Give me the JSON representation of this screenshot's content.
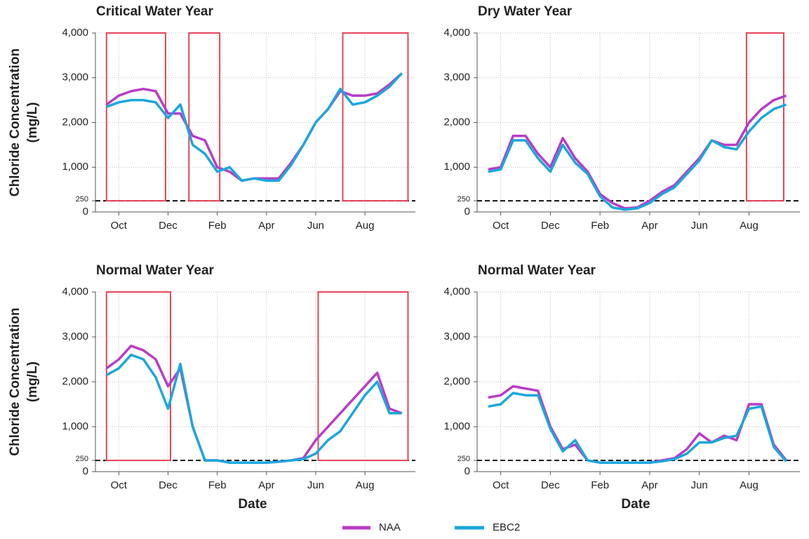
{
  "chart_data": [
    {
      "type": "line",
      "title": "Critical Water Year",
      "y_label": [
        "Chloride Concentration",
        "(mg/L)"
      ],
      "categories": [
        null,
        "Oct",
        null,
        null,
        null,
        "Dec",
        null,
        null,
        null,
        "Feb",
        null,
        null,
        null,
        "Apr",
        null,
        null,
        null,
        "Jun",
        null,
        null,
        null,
        "Aug",
        null,
        null,
        null
      ],
      "series": [
        {
          "name": "NAA",
          "color": "#b93cc6",
          "values": [
            2400,
            2600,
            2700,
            2750,
            2700,
            2200,
            2200,
            1700,
            1600,
            1000,
            900,
            700,
            750,
            750,
            750,
            1100,
            1500,
            2000,
            2300,
            2700,
            2600,
            2600,
            2650,
            2850,
            3100
          ]
        },
        {
          "name": "EBC2",
          "color": "#1aa7dd",
          "values": [
            2350,
            2450,
            2500,
            2500,
            2450,
            2100,
            2400,
            1500,
            1300,
            900,
            1000,
            700,
            750,
            700,
            700,
            1050,
            1500,
            2000,
            2300,
            2750,
            2400,
            2450,
            2600,
            2800,
            3100
          ]
        }
      ],
      "ylim": [
        0,
        4000
      ],
      "yticks": [
        0,
        250,
        {
          "value": 1000,
          "label": "1,000"
        },
        {
          "value": 2000,
          "label": "2,000"
        },
        {
          "value": 3000,
          "label": "3,000"
        },
        {
          "value": 4000,
          "label": "4,000"
        }
      ],
      "threshold": 250,
      "grid": true,
      "highlight_color": "#e8455a",
      "highlight_spans": [
        [
          0,
          4.8
        ],
        [
          6.7,
          9.2
        ],
        [
          19.2,
          24.5
        ]
      ]
    },
    {
      "type": "line",
      "title": "Dry Water Year",
      "categories": [
        null,
        "Oct",
        null,
        null,
        null,
        "Dec",
        null,
        null,
        null,
        "Feb",
        null,
        null,
        null,
        "Apr",
        null,
        null,
        null,
        "Jun",
        null,
        null,
        null,
        "Aug",
        null,
        null,
        null
      ],
      "series": [
        {
          "values": [
            950,
            1000,
            1700,
            1700,
            1300,
            1000,
            1650,
            1200,
            900,
            400,
            200,
            80,
            100,
            250,
            450,
            600,
            900,
            1200,
            1600,
            1500,
            1500,
            2000,
            2300,
            2500,
            2600
          ]
        },
        {
          "values": [
            900,
            950,
            1600,
            1600,
            1200,
            900,
            1500,
            1100,
            850,
            350,
            100,
            50,
            80,
            200,
            400,
            550,
            850,
            1150,
            1600,
            1450,
            1400,
            1800,
            2100,
            2300,
            2400
          ]
        }
      ],
      "ylim": [
        0,
        4000
      ],
      "yticks": [
        0,
        250,
        {
          "value": 1000,
          "label": "1,000"
        },
        {
          "value": 2000,
          "label": "2,000"
        },
        {
          "value": 3000,
          "label": "3,000"
        },
        {
          "value": 4000,
          "label": "4,000"
        }
      ],
      "threshold": 250,
      "grid": true,
      "highlight_color": "#e8455a",
      "highlight_spans": [
        [
          20.8,
          23.8
        ]
      ]
    },
    {
      "type": "line",
      "title": "Normal Water Year",
      "y_label": [
        "Chloride Concentration",
        "(mg/L)"
      ],
      "x_label": "Date",
      "categories": [
        null,
        "Oct",
        null,
        null,
        null,
        "Dec",
        null,
        null,
        null,
        "Feb",
        null,
        null,
        null,
        "Apr",
        null,
        null,
        null,
        "Jun",
        null,
        null,
        null,
        "Aug",
        null,
        null,
        null
      ],
      "series": [
        {
          "values": [
            2300,
            2500,
            2800,
            2700,
            2500,
            1900,
            2300,
            1000,
            250,
            250,
            200,
            200,
            200,
            200,
            220,
            250,
            300,
            700,
            1000,
            1300,
            1600,
            1900,
            2200,
            1400,
            1300
          ]
        },
        {
          "values": [
            2150,
            2300,
            2600,
            2500,
            2100,
            1400,
            2400,
            1000,
            250,
            250,
            200,
            200,
            200,
            200,
            220,
            250,
            280,
            400,
            700,
            900,
            1300,
            1700,
            2000,
            1300,
            1300
          ]
        }
      ],
      "ylim": [
        0,
        4000
      ],
      "yticks": [
        0,
        250,
        {
          "value": 1000,
          "label": "1,000"
        },
        {
          "value": 2000,
          "label": "2,000"
        },
        {
          "value": 3000,
          "label": "3,000"
        },
        {
          "value": 4000,
          "label": "4,000"
        }
      ],
      "threshold": 250,
      "grid": true,
      "highlight_color": "#e8455a",
      "highlight_spans": [
        [
          0,
          5.2
        ],
        [
          17.2,
          24.5
        ]
      ]
    },
    {
      "type": "line",
      "title": "Normal Water Year",
      "x_label": "Date",
      "categories": [
        null,
        "Oct",
        null,
        null,
        null,
        "Dec",
        null,
        null,
        null,
        "Feb",
        null,
        null,
        null,
        "Apr",
        null,
        null,
        null,
        "Jun",
        null,
        null,
        null,
        "Aug",
        null,
        null,
        null
      ],
      "series": [
        {
          "values": [
            1650,
            1700,
            1900,
            1850,
            1800,
            1000,
            500,
            600,
            250,
            200,
            200,
            200,
            200,
            200,
            250,
            300,
            500,
            850,
            650,
            800,
            700,
            1500,
            1500,
            600,
            250
          ]
        },
        {
          "values": [
            1450,
            1500,
            1750,
            1700,
            1700,
            950,
            450,
            700,
            250,
            200,
            200,
            200,
            200,
            200,
            230,
            280,
            400,
            650,
            650,
            750,
            800,
            1400,
            1450,
            550,
            230
          ]
        }
      ],
      "ylim": [
        0,
        4000
      ],
      "yticks": [
        0,
        250,
        {
          "value": 1000,
          "label": "1,000"
        },
        {
          "value": 2000,
          "label": "2,000"
        },
        {
          "value": 3000,
          "label": "3,000"
        },
        {
          "value": 4000,
          "label": "4,000"
        }
      ],
      "threshold": 250,
      "grid": true
    }
  ]
}
